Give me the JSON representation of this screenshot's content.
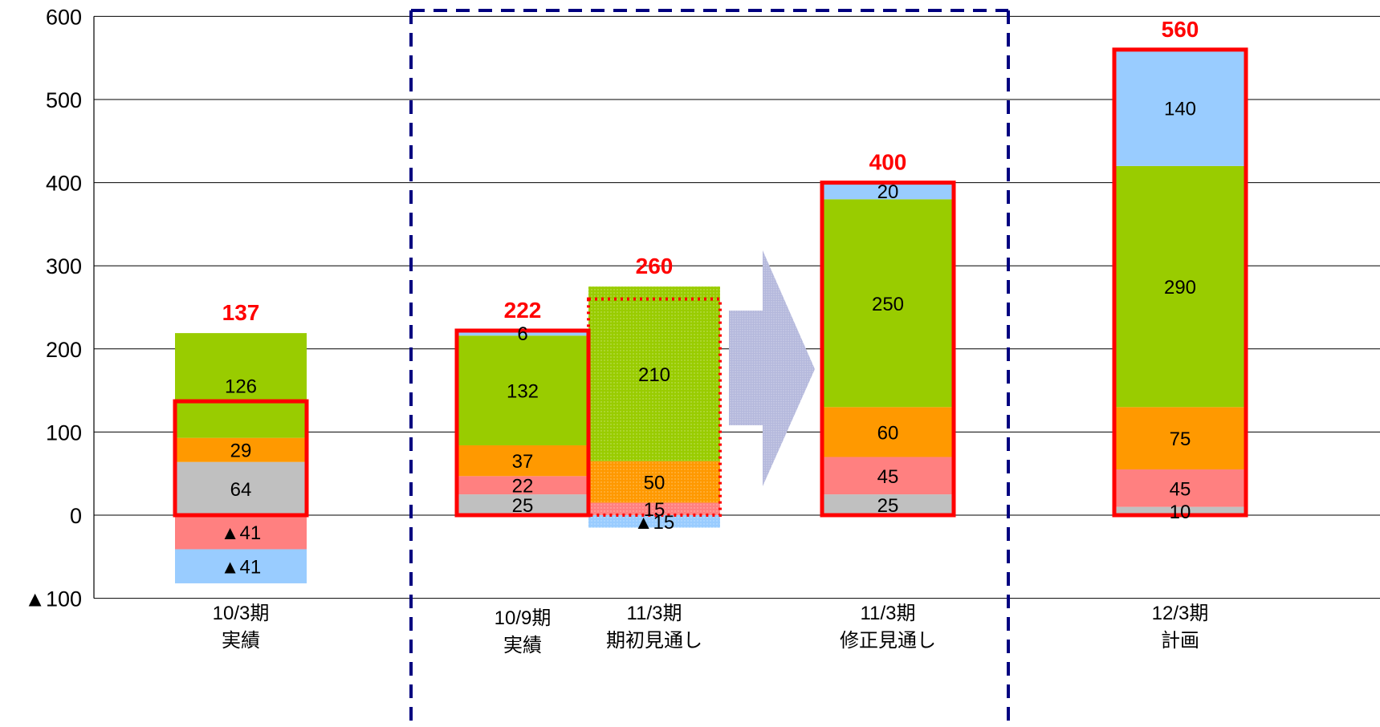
{
  "chart_data": {
    "type": "bar",
    "stacked": true,
    "ylim": [
      -100,
      600
    ],
    "yticks": [
      {
        "value": 600,
        "label": "600"
      },
      {
        "value": 500,
        "label": "500"
      },
      {
        "value": 400,
        "label": "400"
      },
      {
        "value": 300,
        "label": "300"
      },
      {
        "value": 200,
        "label": "200"
      },
      {
        "value": 100,
        "label": "100"
      },
      {
        "value": 0,
        "label": "0"
      },
      {
        "value": -100,
        "label": "▲100"
      }
    ],
    "grid": true,
    "colors": {
      "gray": "#c0c0c0",
      "pink": "#ff8080",
      "orange": "#ff9900",
      "green": "#99cc00",
      "blue": "#99ccff",
      "total_box": "#ff0000",
      "total_label": "#ff0000",
      "divider": "#000080",
      "arrow": "#b4b8dc"
    },
    "bars": [
      {
        "category_lines": [
          "10/3期",
          "実績"
        ],
        "total_label": "137",
        "total_value": 137,
        "projected": false,
        "segments": [
          {
            "color": "gray",
            "value": 64,
            "label": "64"
          },
          {
            "color": "orange",
            "value": 29,
            "label": "29"
          },
          {
            "color": "green",
            "value": 126,
            "label": "126"
          },
          {
            "color": "pink",
            "value": -41,
            "label": "▲41"
          },
          {
            "color": "blue",
            "value": -41,
            "label": "▲41"
          }
        ]
      },
      {
        "category_lines": [
          "10/9期",
          "実績"
        ],
        "total_label": "222",
        "total_value": 222,
        "projected": false,
        "segments": [
          {
            "color": "gray",
            "value": 25,
            "label": "25"
          },
          {
            "color": "pink",
            "value": 22,
            "label": "22"
          },
          {
            "color": "orange",
            "value": 37,
            "label": "37"
          },
          {
            "color": "green",
            "value": 132,
            "label": "132"
          },
          {
            "color": "blue",
            "value": 6,
            "label": "6"
          }
        ]
      },
      {
        "category_lines": [
          "11/3期",
          "期初見通し"
        ],
        "total_label": "260",
        "total_value": 260,
        "projected": true,
        "segments": [
          {
            "color": "pink",
            "value": 15,
            "label": "15"
          },
          {
            "color": "orange",
            "value": 50,
            "label": "50"
          },
          {
            "color": "green",
            "value": 210,
            "label": "210"
          },
          {
            "color": "blue",
            "value": -15,
            "label": "▲15"
          }
        ]
      },
      {
        "category_lines": [
          "11/3期",
          "修正見通し"
        ],
        "total_label": "400",
        "total_value": 400,
        "projected": false,
        "segments": [
          {
            "color": "gray",
            "value": 25,
            "label": "25"
          },
          {
            "color": "pink",
            "value": 45,
            "label": "45"
          },
          {
            "color": "orange",
            "value": 60,
            "label": "60"
          },
          {
            "color": "green",
            "value": 250,
            "label": "250"
          },
          {
            "color": "blue",
            "value": 20,
            "label": "20"
          }
        ]
      },
      {
        "category_lines": [
          "12/3期",
          "計画"
        ],
        "total_label": "560",
        "total_value": 560,
        "projected": false,
        "segments": [
          {
            "color": "gray",
            "value": 10,
            "label": "10"
          },
          {
            "color": "pink",
            "value": 45,
            "label": "45"
          },
          {
            "color": "orange",
            "value": 75,
            "label": "75"
          },
          {
            "color": "green",
            "value": 290,
            "label": "290"
          },
          {
            "color": "blue",
            "value": 140,
            "label": "140"
          }
        ]
      }
    ]
  }
}
